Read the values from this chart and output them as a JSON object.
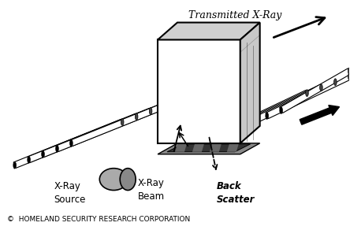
{
  "copyright_text": "©  HOMELAND SECURITY RESEARCH CORPORATION",
  "label_transmitted": "Transmitted X-Ray",
  "label_source": "X-Ray\nSource",
  "label_beam": "X-Ray\nBeam",
  "label_backscatter": "Back\nScatter",
  "bg_color": "#ffffff",
  "box_face_color": "#ffffff",
  "box_side_color": "#c8c8c8",
  "box_top_color": "#d0d0d0",
  "roller_white": "#f0f0f0",
  "roller_black": "#111111",
  "source_gray": "#aaaaaa",
  "source_dark": "#888888",
  "line_color": "#000000",
  "conveyor_dark": "#555555",
  "conveyor_med": "#888888"
}
